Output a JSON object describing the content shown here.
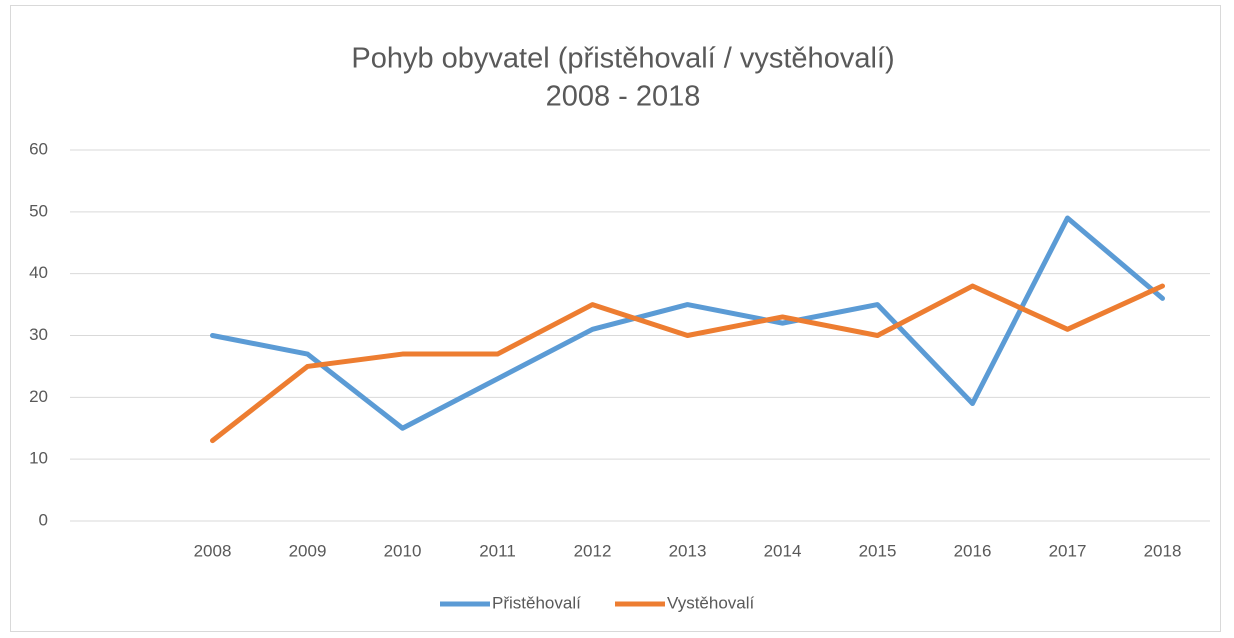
{
  "chart_data": {
    "type": "line",
    "title": [
      "Pohyb obyvatel (přistěhovalí / vystěhovalí)",
      "2008 - 2018"
    ],
    "categories": [
      null,
      "2008",
      "2009",
      "2010",
      "2011",
      "2012",
      "2013",
      "2014",
      "2015",
      "2016",
      "2017",
      "2018"
    ],
    "series": [
      {
        "name": "Přistěhovalí",
        "color": "#5b9bd5",
        "values": [
          null,
          30,
          27,
          15,
          23,
          31,
          35,
          32,
          35,
          19,
          49,
          36
        ]
      },
      {
        "name": "Vystěhovalí",
        "color": "#ed7d31",
        "values": [
          null,
          13,
          25,
          27,
          27,
          35,
          30,
          33,
          30,
          38,
          31,
          38
        ]
      }
    ],
    "ylim": [
      0,
      60
    ],
    "yticks": [
      0,
      10,
      20,
      30,
      40,
      50,
      60
    ],
    "grid": true,
    "legend": "bottom"
  }
}
